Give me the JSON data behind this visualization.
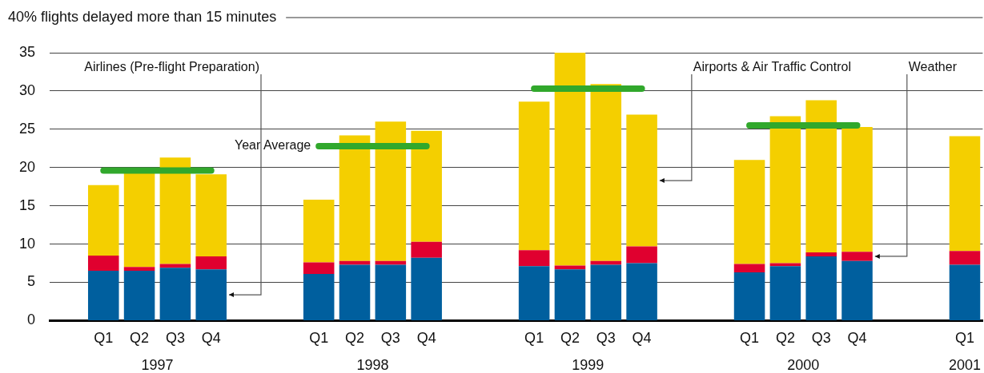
{
  "chart_data": {
    "type": "bar",
    "title": "40% flights delayed more than 15 minutes",
    "categories": [
      null,
      "Q1",
      "Q2",
      "Q3",
      "Q4",
      null,
      null,
      "Q1",
      "Q2",
      "Q3",
      "Q4",
      null,
      null,
      "Q1",
      "Q2",
      "Q3",
      "Q4",
      null,
      null,
      "Q1",
      "Q2",
      "Q3",
      "Q4",
      null,
      null,
      "Q1"
    ],
    "stacked": true,
    "ylim": [
      0,
      35
    ],
    "yticks": [
      0,
      5,
      10,
      15,
      20,
      25,
      30,
      35
    ],
    "grid": "y",
    "legend": false,
    "marker": "none",
    "series": [
      {
        "name": "Airlines (Pre-flight Preparation)",
        "color": "#005f9e",
        "values": [
          null,
          6.5,
          6.5,
          6.9,
          6.7,
          null,
          null,
          6.1,
          7.3,
          7.3,
          8.2,
          null,
          null,
          7.1,
          6.7,
          7.3,
          7.5,
          null,
          null,
          6.3,
          7.1,
          8.4,
          7.8,
          null,
          null,
          7.3
        ]
      },
      {
        "name": "Weather",
        "color": "#e0002f",
        "values": [
          null,
          2.0,
          0.5,
          0.5,
          1.7,
          null,
          null,
          1.5,
          0.5,
          0.5,
          2.1,
          null,
          null,
          2.1,
          0.5,
          0.5,
          2.2,
          null,
          null,
          1.1,
          0.4,
          0.5,
          1.2,
          null,
          null,
          1.8
        ]
      },
      {
        "name": "Airports & Air Traffic Control",
        "color": "#f4cf00",
        "values": [
          null,
          9.2,
          12.5,
          13.9,
          10.7,
          null,
          null,
          8.2,
          16.4,
          18.2,
          14.5,
          null,
          null,
          19.4,
          27.8,
          23.1,
          17.2,
          null,
          null,
          13.6,
          19.2,
          19.9,
          16.3,
          null,
          null,
          15.0
        ]
      },
      {
        "name": "Year Average",
        "type": "line",
        "color": "#31a82c",
        "values": [
          null,
          19.6,
          19.6,
          19.6,
          19.6,
          null,
          null,
          22.8,
          22.8,
          22.8,
          22.8,
          null,
          null,
          30.3,
          30.3,
          30.3,
          30.3,
          null,
          null,
          25.5,
          25.5,
          25.5,
          25.5,
          null,
          null,
          null
        ]
      }
    ],
    "annotations": [
      "1997",
      "1998",
      "1999",
      "2000",
      "2001"
    ]
  }
}
